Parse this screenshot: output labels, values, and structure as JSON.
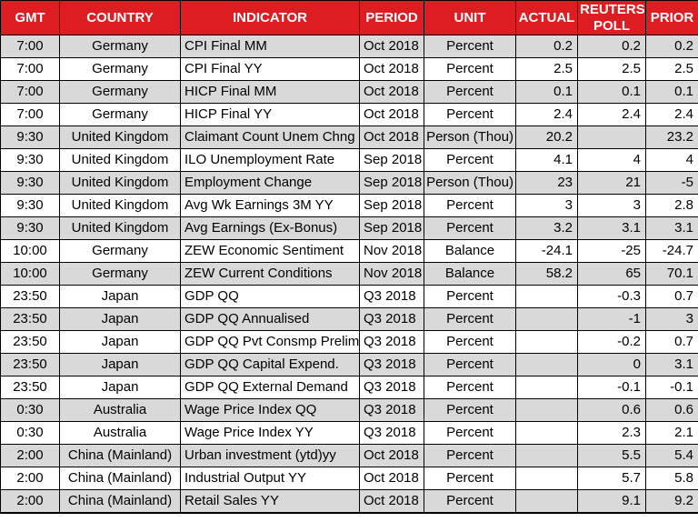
{
  "chart_data": {
    "type": "table",
    "columns": [
      {
        "key": "gmt",
        "label": "GMT",
        "align": "center"
      },
      {
        "key": "country",
        "label": "COUNTRY",
        "align": "center"
      },
      {
        "key": "indicator",
        "label": "INDICATOR",
        "align": "left"
      },
      {
        "key": "period",
        "label": "PERIOD",
        "align": "left"
      },
      {
        "key": "unit",
        "label": "UNIT",
        "align": "center"
      },
      {
        "key": "actual",
        "label": "ACTUAL",
        "align": "right"
      },
      {
        "key": "reuters_poll",
        "label": "REUTERS POLL",
        "align": "right"
      },
      {
        "key": "prior",
        "label": "PRIOR",
        "align": "right"
      }
    ],
    "rows": [
      [
        "7:00",
        "Germany",
        "CPI Final MM",
        "Oct 2018",
        "Percent",
        "0.2",
        "0.2",
        "0.2"
      ],
      [
        "7:00",
        "Germany",
        "CPI Final YY",
        "Oct 2018",
        "Percent",
        "2.5",
        "2.5",
        "2.5"
      ],
      [
        "7:00",
        "Germany",
        "HICP Final MM",
        "Oct 2018",
        "Percent",
        "0.1",
        "0.1",
        "0.1"
      ],
      [
        "7:00",
        "Germany",
        "HICP Final YY",
        "Oct 2018",
        "Percent",
        "2.4",
        "2.4",
        "2.4"
      ],
      [
        "9:30",
        "United Kingdom",
        "Claimant Count Unem Chng",
        "Oct 2018",
        "Person (Thou)",
        "20.2",
        "",
        "23.2"
      ],
      [
        "9:30",
        "United Kingdom",
        "ILO Unemployment Rate",
        "Sep 2018",
        "Percent",
        "4.1",
        "4",
        "4"
      ],
      [
        "9:30",
        "United Kingdom",
        "Employment Change",
        "Sep 2018",
        "Person (Thou)",
        "23",
        "21",
        "-5"
      ],
      [
        "9:30",
        "United Kingdom",
        "Avg Wk Earnings 3M YY",
        "Sep 2018",
        "Percent",
        "3",
        "3",
        "2.8"
      ],
      [
        "9:30",
        "United Kingdom",
        "Avg Earnings (Ex-Bonus)",
        "Sep 2018",
        "Percent",
        "3.2",
        "3.1",
        "3.1"
      ],
      [
        "10:00",
        "Germany",
        "ZEW Economic Sentiment",
        "Nov 2018",
        "Balance",
        "-24.1",
        "-25",
        "-24.7"
      ],
      [
        "10:00",
        "Germany",
        "ZEW Current Conditions",
        "Nov 2018",
        "Balance",
        "58.2",
        "65",
        "70.1"
      ],
      [
        "23:50",
        "Japan",
        "GDP QQ",
        "Q3 2018",
        "Percent",
        "",
        "-0.3",
        "0.7"
      ],
      [
        "23:50",
        "Japan",
        "GDP QQ Annualised",
        "Q3 2018",
        "Percent",
        "",
        "-1",
        "3"
      ],
      [
        "23:50",
        "Japan",
        "GDP QQ Pvt Consmp Prelim",
        "Q3 2018",
        "Percent",
        "",
        "-0.2",
        "0.7"
      ],
      [
        "23:50",
        "Japan",
        "GDP QQ Capital Expend.",
        "Q3 2018",
        "Percent",
        "",
        "0",
        "3.1"
      ],
      [
        "23:50",
        "Japan",
        "GDP QQ External Demand",
        "Q3 2018",
        "Percent",
        "",
        "-0.1",
        "-0.1"
      ],
      [
        "0:30",
        "Australia",
        "Wage Price Index QQ",
        "Q3 2018",
        "Percent",
        "",
        "0.6",
        "0.6"
      ],
      [
        "0:30",
        "Australia",
        "Wage Price Index YY",
        "Q3 2018",
        "Percent",
        "",
        "2.3",
        "2.1"
      ],
      [
        "2:00",
        "China (Mainland)",
        "Urban investment (ytd)yy",
        "Oct 2018",
        "Percent",
        "",
        "5.5",
        "5.4"
      ],
      [
        "2:00",
        "China (Mainland)",
        "Industrial Output YY",
        "Oct 2018",
        "Percent",
        "",
        "5.7",
        "5.8"
      ],
      [
        "2:00",
        "China (Mainland)",
        "Retail Sales YY",
        "Oct 2018",
        "Percent",
        "",
        "9.1",
        "9.2"
      ]
    ]
  },
  "colors": {
    "header_bg": "#dd1d21",
    "header_text": "#ffffff",
    "row_alternate": "#d9d9d9",
    "row_default": "#ffffff",
    "border": "#000000"
  }
}
